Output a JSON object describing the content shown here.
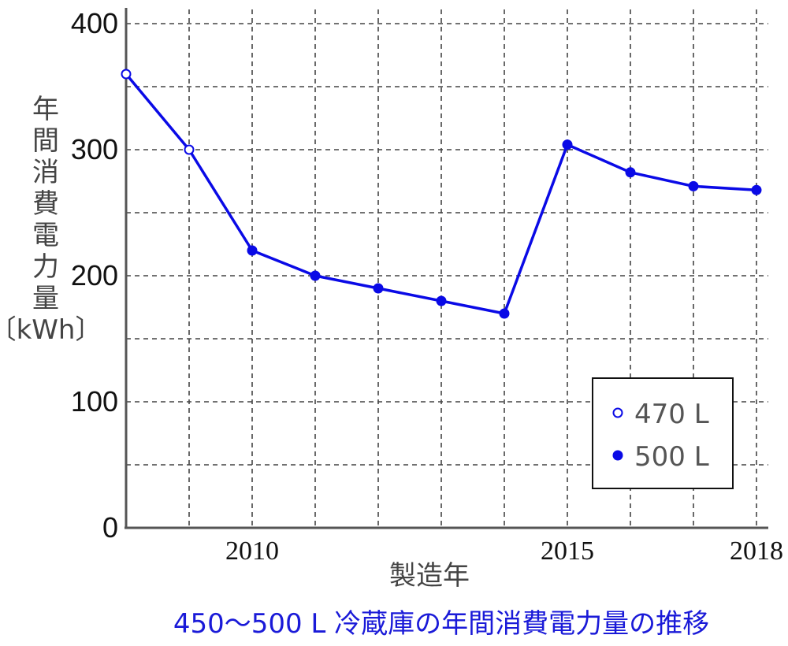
{
  "chart_data": {
    "type": "line",
    "title": "450〜500 L 冷蔵庫の年間消費電力量の推移",
    "xlabel": "製造年",
    "ylabel": "年間消費電力量〔kWh〕",
    "ylim": [
      0,
      400
    ],
    "xlim": [
      2008,
      2018
    ],
    "yticks": [
      0,
      100,
      200,
      300,
      400
    ],
    "xtick_labels": [
      {
        "x": 2010,
        "label": "2010"
      },
      {
        "x": 2015,
        "label": "2015"
      },
      {
        "x": 2018,
        "label": "2018"
      }
    ],
    "grid": true,
    "legend_position": "bottom-right",
    "points": [
      {
        "x": 2008,
        "y": 360,
        "series": "470 L"
      },
      {
        "x": 2009,
        "y": 300,
        "series": "470 L"
      },
      {
        "x": 2010,
        "y": 220,
        "series": "500 L"
      },
      {
        "x": 2011,
        "y": 200,
        "series": "500 L"
      },
      {
        "x": 2012,
        "y": 190,
        "series": "500 L"
      },
      {
        "x": 2013,
        "y": 180,
        "series": "500 L"
      },
      {
        "x": 2014,
        "y": 170,
        "series": "500 L"
      },
      {
        "x": 2015,
        "y": 304,
        "series": "500 L"
      },
      {
        "x": 2016,
        "y": 282,
        "series": "500 L"
      },
      {
        "x": 2017,
        "y": 271,
        "series": "500 L"
      },
      {
        "x": 2018,
        "y": 268,
        "series": "500 L"
      }
    ],
    "series": [
      {
        "name": "470 L",
        "marker": "open-circle"
      },
      {
        "name": "500 L",
        "marker": "filled-circle"
      }
    ],
    "colors": {
      "line": "#0a0ae6",
      "marker": "#0a0ae6",
      "title": "#1a1ad8"
    }
  }
}
